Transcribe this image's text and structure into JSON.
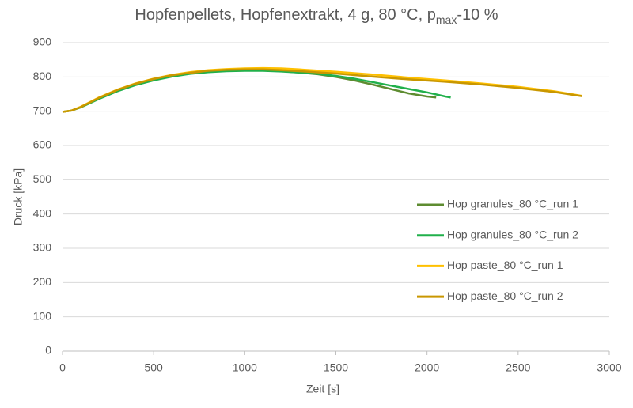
{
  "chart_data": {
    "type": "line",
    "title_parts": [
      "Hopfenpellets, Hopfenextrakt, 4 g, 80 °C, p",
      "max",
      "-10 %"
    ],
    "x_label": "Zeit [s]",
    "y_label": "Druck [kPa]",
    "xlim": [
      0,
      3000
    ],
    "xticks": [
      0,
      500,
      1000,
      1500,
      2000,
      2500,
      3000
    ],
    "ylim": [
      0,
      900
    ],
    "yticks": [
      0,
      100,
      200,
      300,
      400,
      500,
      600,
      700,
      800,
      900
    ],
    "grid": true,
    "legend": "right",
    "series": [
      {
        "name": "Hop granules_80 °C_run 1",
        "color": "#5e8c31",
        "x": [
          0,
          50,
          100,
          200,
          300,
          400,
          500,
          600,
          700,
          800,
          900,
          1000,
          1100,
          1200,
          1300,
          1400,
          1500,
          1600,
          1700,
          1800,
          1900,
          2000,
          2050
        ],
        "values": [
          698,
          702,
          712,
          738,
          760,
          778,
          792,
          803,
          810,
          815,
          818,
          819,
          819,
          817,
          813,
          808,
          800,
          790,
          778,
          765,
          752,
          743,
          740
        ]
      },
      {
        "name": "Hop granules_80 °C_run 2",
        "color": "#21b04b",
        "x": [
          0,
          50,
          100,
          200,
          300,
          400,
          500,
          600,
          700,
          800,
          900,
          1000,
          1100,
          1200,
          1300,
          1400,
          1500,
          1600,
          1700,
          1800,
          1900,
          2000,
          2100,
          2130
        ],
        "values": [
          698,
          702,
          711,
          736,
          758,
          776,
          790,
          801,
          809,
          814,
          817,
          818,
          818,
          816,
          813,
          809,
          803,
          795,
          785,
          775,
          765,
          755,
          743,
          740
        ]
      },
      {
        "name": "Hop paste_80 °C_run 1",
        "color": "#ffc000",
        "x": [
          0,
          50,
          100,
          200,
          300,
          400,
          500,
          600,
          700,
          800,
          900,
          1000,
          1100,
          1200,
          1300,
          1500,
          1700,
          1900,
          2100,
          2300,
          2500,
          2700,
          2850
        ],
        "values": [
          698,
          702,
          713,
          740,
          763,
          781,
          795,
          806,
          814,
          820,
          823,
          825,
          826,
          825,
          822,
          815,
          807,
          798,
          790,
          781,
          771,
          758,
          745
        ]
      },
      {
        "name": "Hop paste_80 °C_run 2",
        "color": "#c99700",
        "x": [
          0,
          50,
          100,
          200,
          300,
          400,
          500,
          600,
          700,
          800,
          900,
          1000,
          1100,
          1200,
          1300,
          1500,
          1700,
          1900,
          2100,
          2300,
          2500,
          2700,
          2850
        ],
        "values": [
          698,
          702,
          712,
          739,
          762,
          780,
          794,
          805,
          812,
          818,
          821,
          822,
          822,
          820,
          817,
          810,
          801,
          793,
          786,
          778,
          768,
          756,
          744
        ]
      }
    ]
  }
}
